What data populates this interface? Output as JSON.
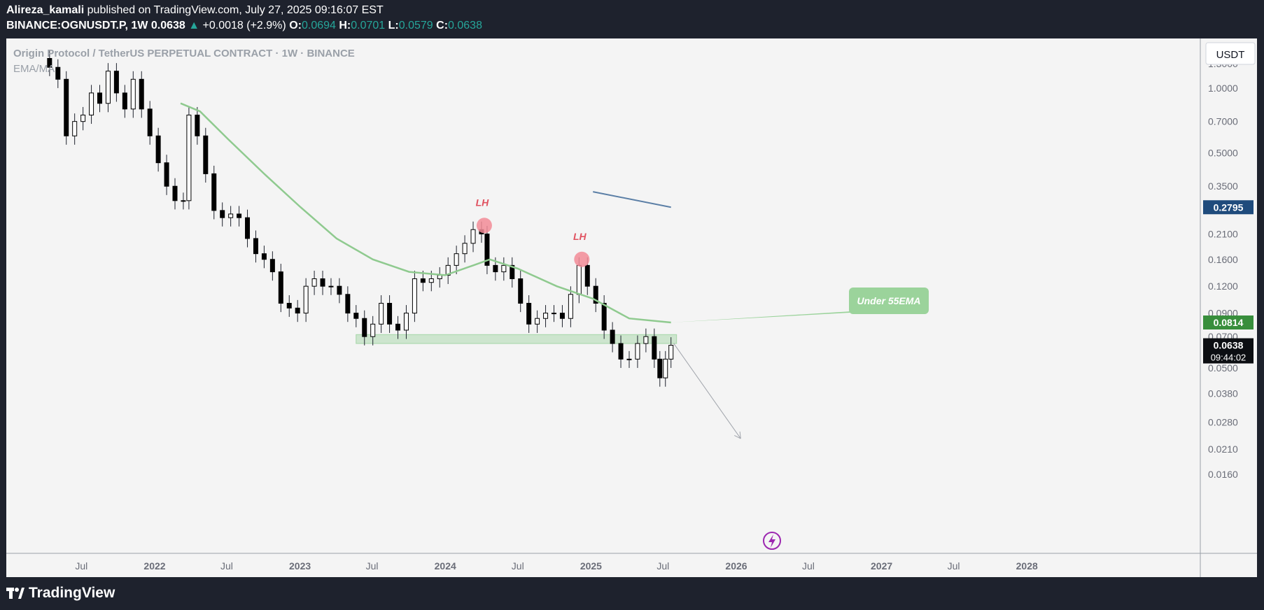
{
  "header": {
    "author": "Alireza_kamali",
    "published_text": "published on TradingView.com, July 27, 2025 09:16:07 EST",
    "symbol": "BINANCE:OGNUSDT.P, 1W",
    "price": "0.0638",
    "change": "+0.0018 (+2.9%)",
    "open_label": "O:",
    "open": "0.0694",
    "high_label": "H:",
    "high": "0.0701",
    "low_label": "L:",
    "low": "0.0579",
    "close_label": "C:",
    "close": "0.0638"
  },
  "legend": {
    "instrument": "Origin Protocol / TetherUS PERPETUAL CONTRACT · 1W · BINANCE",
    "indicator": "EMA/MA"
  },
  "footer": {
    "brand": "TradingView"
  },
  "colors": {
    "up": "#26a69a",
    "candle_body": "#000000",
    "candle_wick": "#1e222d",
    "ema": "#8fca8f",
    "support_zone": "#a5d6a7",
    "lh_marker": "#f28b96",
    "lh_text": "#e05260",
    "trendline": "#5b7fa6",
    "ema_badge": "#388e3c",
    "price_badge": "#0c0e12",
    "trend_badge": "#1f4b7c",
    "callout": "#9bd39b"
  },
  "chart_data": {
    "type": "candlestick",
    "scale": "log",
    "ylim": [
      0.015,
      1.6
    ],
    "currency": "USDT",
    "y_ticks": [
      "1.3000",
      "1.0000",
      "0.7000",
      "0.5000",
      "0.3500",
      "0.2100",
      "0.1600",
      "0.1200",
      "0.0900",
      "0.0700",
      "0.0500",
      "0.0380",
      "0.0280",
      "0.0210",
      "0.0160"
    ],
    "x_ticks": [
      {
        "label": "Jul",
        "date": "2021-07-01",
        "bold": false
      },
      {
        "label": "2022",
        "date": "2022-01-01",
        "bold": true
      },
      {
        "label": "Jul",
        "date": "2022-07-01",
        "bold": false
      },
      {
        "label": "2023",
        "date": "2023-01-01",
        "bold": true
      },
      {
        "label": "Jul",
        "date": "2023-07-01",
        "bold": false
      },
      {
        "label": "2024",
        "date": "2024-01-01",
        "bold": true
      },
      {
        "label": "Jul",
        "date": "2024-07-01",
        "bold": false
      },
      {
        "label": "2025",
        "date": "2025-01-01",
        "bold": true
      },
      {
        "label": "Jul",
        "date": "2025-07-01",
        "bold": false
      },
      {
        "label": "2026",
        "date": "2026-01-01",
        "bold": true
      },
      {
        "label": "Jul",
        "date": "2026-07-01",
        "bold": false
      },
      {
        "label": "2027",
        "date": "2027-01-01",
        "bold": true
      },
      {
        "label": "Jul",
        "date": "2027-07-01",
        "bold": false
      },
      {
        "label": "2028",
        "date": "2028-01-01",
        "bold": true
      }
    ],
    "candles": [
      {
        "date": "2021-04-12",
        "close": 1.25
      },
      {
        "date": "2021-05-03",
        "close": 1.1
      },
      {
        "date": "2021-05-24",
        "close": 0.6
      },
      {
        "date": "2021-06-14",
        "close": 0.7
      },
      {
        "date": "2021-07-05",
        "close": 0.75
      },
      {
        "date": "2021-07-26",
        "close": 0.95
      },
      {
        "date": "2021-08-16",
        "close": 0.85
      },
      {
        "date": "2021-09-06",
        "close": 1.2
      },
      {
        "date": "2021-09-27",
        "close": 0.95
      },
      {
        "date": "2021-10-18",
        "close": 0.8
      },
      {
        "date": "2021-11-08",
        "close": 1.1
      },
      {
        "date": "2021-11-29",
        "close": 0.8
      },
      {
        "date": "2021-12-20",
        "close": 0.6
      },
      {
        "date": "2022-01-10",
        "close": 0.45
      },
      {
        "date": "2022-01-31",
        "close": 0.35
      },
      {
        "date": "2022-02-21",
        "close": 0.3
      },
      {
        "date": "2022-03-14",
        "close": 0.3
      },
      {
        "date": "2022-03-28",
        "close": 0.75
      },
      {
        "date": "2022-04-18",
        "close": 0.6
      },
      {
        "date": "2022-05-09",
        "close": 0.4
      },
      {
        "date": "2022-05-30",
        "close": 0.27
      },
      {
        "date": "2022-06-20",
        "close": 0.25
      },
      {
        "date": "2022-07-11",
        "close": 0.26
      },
      {
        "date": "2022-08-01",
        "close": 0.25
      },
      {
        "date": "2022-08-22",
        "close": 0.2
      },
      {
        "date": "2022-09-12",
        "close": 0.17
      },
      {
        "date": "2022-10-03",
        "close": 0.16
      },
      {
        "date": "2022-10-24",
        "close": 0.14
      },
      {
        "date": "2022-11-14",
        "close": 0.1
      },
      {
        "date": "2022-12-05",
        "close": 0.095
      },
      {
        "date": "2022-12-26",
        "close": 0.09
      },
      {
        "date": "2023-01-16",
        "close": 0.12
      },
      {
        "date": "2023-02-06",
        "close": 0.13
      },
      {
        "date": "2023-02-27",
        "close": 0.12
      },
      {
        "date": "2023-03-20",
        "close": 0.12
      },
      {
        "date": "2023-04-10",
        "close": 0.11
      },
      {
        "date": "2023-05-01",
        "close": 0.09
      },
      {
        "date": "2023-05-22",
        "close": 0.085
      },
      {
        "date": "2023-06-12",
        "close": 0.07
      },
      {
        "date": "2023-07-03",
        "close": 0.08
      },
      {
        "date": "2023-07-24",
        "close": 0.1
      },
      {
        "date": "2023-08-14",
        "close": 0.08
      },
      {
        "date": "2023-09-04",
        "close": 0.075
      },
      {
        "date": "2023-09-25",
        "close": 0.09
      },
      {
        "date": "2023-10-16",
        "close": 0.13
      },
      {
        "date": "2023-11-06",
        "close": 0.125
      },
      {
        "date": "2023-11-27",
        "close": 0.13
      },
      {
        "date": "2023-12-18",
        "close": 0.135
      },
      {
        "date": "2024-01-08",
        "close": 0.15
      },
      {
        "date": "2024-01-29",
        "close": 0.17
      },
      {
        "date": "2024-02-19",
        "close": 0.19
      },
      {
        "date": "2024-03-11",
        "close": 0.22
      },
      {
        "date": "2024-04-01",
        "close": 0.21
      },
      {
        "date": "2024-04-15",
        "close": 0.15
      },
      {
        "date": "2024-05-06",
        "close": 0.14
      },
      {
        "date": "2024-05-27",
        "close": 0.15
      },
      {
        "date": "2024-06-17",
        "close": 0.13
      },
      {
        "date": "2024-07-08",
        "close": 0.1
      },
      {
        "date": "2024-07-29",
        "close": 0.08
      },
      {
        "date": "2024-08-19",
        "close": 0.085
      },
      {
        "date": "2024-09-09",
        "close": 0.09
      },
      {
        "date": "2024-09-30",
        "close": 0.09
      },
      {
        "date": "2024-10-21",
        "close": 0.085
      },
      {
        "date": "2024-11-11",
        "close": 0.11
      },
      {
        "date": "2024-12-02",
        "close": 0.15
      },
      {
        "date": "2024-12-23",
        "close": 0.12
      },
      {
        "date": "2025-01-13",
        "close": 0.1
      },
      {
        "date": "2025-02-03",
        "close": 0.075
      },
      {
        "date": "2025-02-24",
        "close": 0.065
      },
      {
        "date": "2025-03-17",
        "close": 0.055
      },
      {
        "date": "2025-04-07",
        "close": 0.055
      },
      {
        "date": "2025-04-28",
        "close": 0.065
      },
      {
        "date": "2025-05-19",
        "close": 0.07
      },
      {
        "date": "2025-06-09",
        "close": 0.055
      },
      {
        "date": "2025-06-23",
        "close": 0.045
      },
      {
        "date": "2025-07-07",
        "close": 0.055
      },
      {
        "date": "2025-07-21",
        "close": 0.0638
      }
    ],
    "ema55": [
      {
        "date": "2022-03-07",
        "value": 0.85
      },
      {
        "date": "2022-04-25",
        "value": 0.78
      },
      {
        "date": "2022-07-04",
        "value": 0.58
      },
      {
        "date": "2022-10-03",
        "value": 0.4
      },
      {
        "date": "2023-01-02",
        "value": 0.28
      },
      {
        "date": "2023-04-03",
        "value": 0.2
      },
      {
        "date": "2023-07-03",
        "value": 0.16
      },
      {
        "date": "2023-10-02",
        "value": 0.14
      },
      {
        "date": "2024-01-01",
        "value": 0.135
      },
      {
        "date": "2024-03-11",
        "value": 0.15
      },
      {
        "date": "2024-04-22",
        "value": 0.16
      },
      {
        "date": "2024-07-01",
        "value": 0.145
      },
      {
        "date": "2024-10-07",
        "value": 0.12
      },
      {
        "date": "2025-01-06",
        "value": 0.105
      },
      {
        "date": "2025-04-07",
        "value": 0.085
      },
      {
        "date": "2025-07-21",
        "value": 0.0814
      }
    ],
    "support_zone": {
      "from": "2023-05-22",
      "to": "2025-08-04",
      "low": 0.065,
      "high": 0.0715
    },
    "annotations": [
      {
        "type": "marker",
        "label": "LH",
        "date": "2024-04-08",
        "price": 0.23
      },
      {
        "type": "marker",
        "label": "LH",
        "date": "2024-12-09",
        "price": 0.16
      },
      {
        "type": "callout",
        "label": "Under 55EMA",
        "date": "2025-07-21",
        "price": 0.0814
      },
      {
        "type": "arrow",
        "from_date": "2025-07-28",
        "from_price": 0.065,
        "to_date": "2026-01-12",
        "to_price": 0.0235
      }
    ],
    "trendline": {
      "from_date": "2025-01-06",
      "from_price": 0.33,
      "to_date": "2025-07-21",
      "to_price": 0.2795
    },
    "price_labels": [
      {
        "value": "0.2795",
        "kind": "trend"
      },
      {
        "value": "0.0814",
        "kind": "ema"
      },
      {
        "value": "0.0638",
        "kind": "price",
        "countdown": "09:44:02"
      }
    ]
  }
}
